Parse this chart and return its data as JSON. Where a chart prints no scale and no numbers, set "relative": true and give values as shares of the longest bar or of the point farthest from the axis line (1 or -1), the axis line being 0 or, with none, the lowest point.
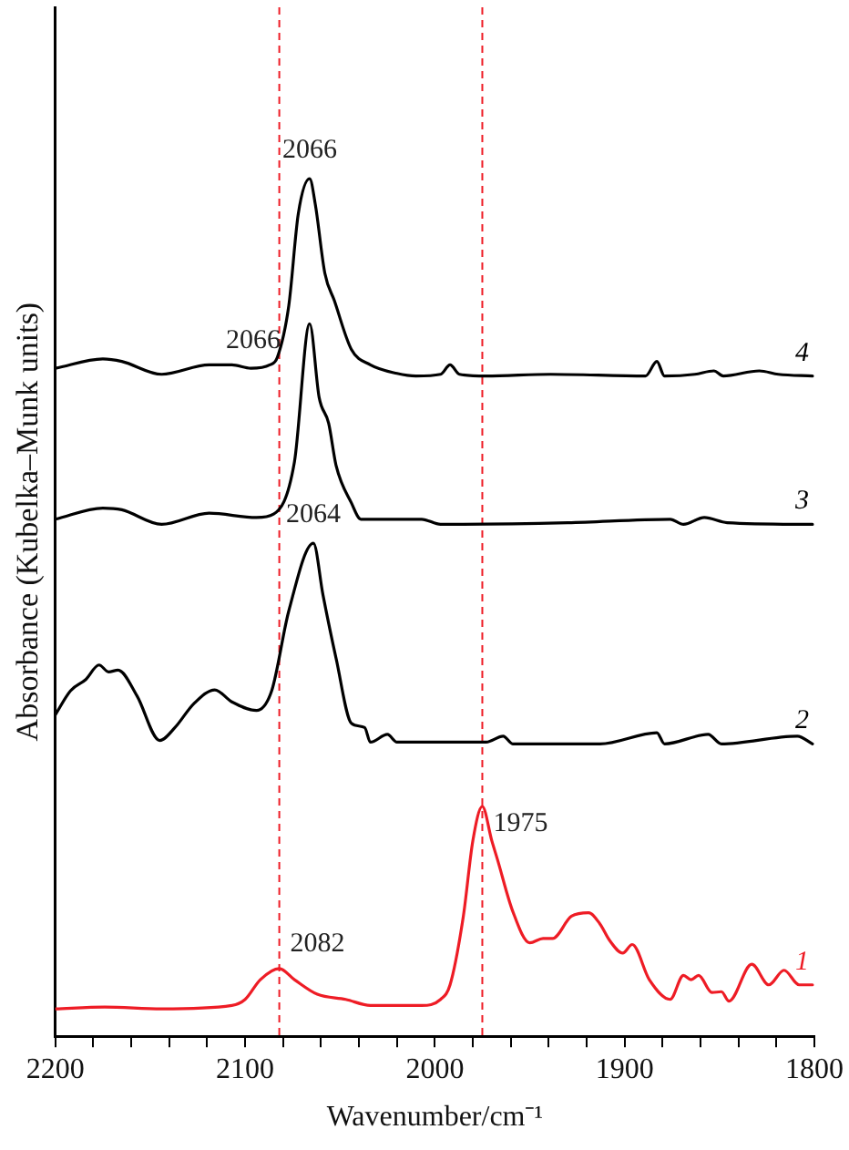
{
  "chart_data": {
    "type": "line",
    "relative": true,
    "xlabel": "Wavenumber/cm⁻¹",
    "ylabel": "Absorbance (Kubelka–Munk units)",
    "xlim": [
      2200,
      1800
    ],
    "xticks": [
      2200,
      {
        "value": 2180,
        "label": null
      },
      {
        "value": 2160,
        "label": null
      },
      {
        "value": 2140,
        "label": null
      },
      {
        "value": 2120,
        "label": null
      },
      2100,
      {
        "value": 2080,
        "label": null
      },
      {
        "value": 2060,
        "label": null
      },
      {
        "value": 2040,
        "label": null
      },
      {
        "value": 2020,
        "label": null
      },
      2000,
      {
        "value": 1980,
        "label": null
      },
      {
        "value": 1960,
        "label": null
      },
      {
        "value": 1940,
        "label": null
      },
      {
        "value": 1920,
        "label": null
      },
      1900,
      {
        "value": 1880,
        "label": null
      },
      {
        "value": 1860,
        "label": null
      },
      {
        "value": 1840,
        "label": null
      },
      {
        "value": 1820,
        "label": null
      },
      1800
    ],
    "grid": false,
    "legend": false,
    "marker": "none",
    "line_style": "solid",
    "series": [
      {
        "name": "1",
        "color": "#ee1c25",
        "x": [
          2200,
          2174,
          2144,
          2107,
          2100,
          2092,
          2082,
          2074,
          2062,
          2047,
          2034,
          2007,
          1997,
          1992,
          1985,
          1980,
          1975,
          1970,
          1967,
          1959,
          1950,
          1943,
          1938,
          1928,
          1919,
          1913,
          1908,
          1901,
          1896,
          1887,
          1876,
          1869,
          1865,
          1861,
          1854,
          1849,
          1845,
          1833,
          1824,
          1816,
          1808,
          1801
        ],
        "values": [
          0.032,
          0.034,
          0.032,
          0.036,
          0.043,
          0.066,
          0.079,
          0.066,
          0.049,
          0.043,
          0.036,
          0.036,
          0.043,
          0.06,
          0.14,
          0.228,
          0.268,
          0.228,
          0.206,
          0.146,
          0.109,
          0.114,
          0.114,
          0.14,
          0.144,
          0.131,
          0.112,
          0.097,
          0.107,
          0.066,
          0.043,
          0.071,
          0.066,
          0.071,
          0.051,
          0.052,
          0.041,
          0.084,
          0.06,
          0.077,
          0.06,
          0.06
        ]
      },
      {
        "name": "2",
        "color": "#000000",
        "x": [
          2200,
          2192,
          2184,
          2177,
          2172,
          2167,
          2157,
          2145,
          2137,
          2127,
          2116,
          2107,
          2094,
          2086,
          2077,
          2064,
          2059,
          2052,
          2044,
          2037,
          2034,
          2025,
          2020,
          1973,
          1964,
          1959,
          1913,
          1883,
          1879,
          1856,
          1849,
          1809,
          1801
        ],
        "values": [
          0.375,
          0.403,
          0.416,
          0.433,
          0.425,
          0.427,
          0.397,
          0.345,
          0.36,
          0.388,
          0.404,
          0.39,
          0.38,
          0.403,
          0.496,
          0.575,
          0.515,
          0.44,
          0.365,
          0.36,
          0.343,
          0.352,
          0.343,
          0.343,
          0.35,
          0.341,
          0.341,
          0.354,
          0.341,
          0.352,
          0.341,
          0.35,
          0.341
        ]
      },
      {
        "name": "3",
        "color": "#000000",
        "x": [
          2200,
          2175,
          2165,
          2144,
          2119,
          2094,
          2085,
          2074,
          2066,
          2061,
          2056,
          2052,
          2044,
          2039,
          2007,
          1997,
          1930,
          1876,
          1869,
          1858,
          1846,
          1801
        ],
        "values": [
          0.603,
          0.616,
          0.614,
          0.597,
          0.61,
          0.605,
          0.609,
          0.67,
          0.831,
          0.745,
          0.715,
          0.665,
          0.622,
          0.603,
          0.603,
          0.597,
          0.599,
          0.603,
          0.597,
          0.605,
          0.599,
          0.597
        ]
      },
      {
        "name": "4",
        "color": "#000000",
        "x": [
          2200,
          2175,
          2165,
          2144,
          2119,
          2107,
          2097,
          2087,
          2083,
          2077,
          2072,
          2066,
          2063,
          2058,
          2053,
          2044,
          2034,
          2020,
          2010,
          1997,
          1992,
          1987,
          1973,
          1939,
          1889,
          1883,
          1879,
          1863,
          1853,
          1848,
          1829,
          1819,
          1801
        ],
        "values": [
          0.779,
          0.79,
          0.787,
          0.772,
          0.783,
          0.783,
          0.779,
          0.783,
          0.792,
          0.852,
          0.959,
          1.0,
          0.97,
          0.89,
          0.858,
          0.801,
          0.783,
          0.773,
          0.77,
          0.772,
          0.783,
          0.772,
          0.77,
          0.772,
          0.77,
          0.787,
          0.77,
          0.772,
          0.776,
          0.77,
          0.776,
          0.772,
          0.77
        ]
      }
    ],
    "ref_lines": [
      {
        "axis": "x",
        "value": 2082,
        "color": "#ee1c25",
        "line_style": "dashed"
      },
      {
        "axis": "x",
        "value": 1975,
        "color": "#ee1c25",
        "line_style": "dashed"
      }
    ],
    "annotations": [
      {
        "text": "2066",
        "x": 2066,
        "y": 1.0
      },
      {
        "text": "2066",
        "x": 2066,
        "y": 0.831
      },
      {
        "text": "2064",
        "x": 2064,
        "y": 0.575
      },
      {
        "text": "2082",
        "x": 2082,
        "y": 0.079
      },
      {
        "text": "1975",
        "x": 1975,
        "y": 0.268
      }
    ]
  }
}
